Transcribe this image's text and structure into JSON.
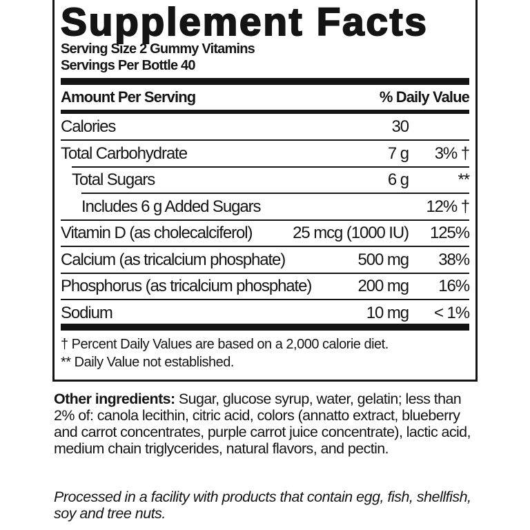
{
  "title": "Supplement Facts",
  "serving_size": "Serving Size 2 Gummy Vitamins",
  "servings_per": "Servings Per Bottle 40",
  "header": {
    "amount": "Amount Per Serving",
    "dv": "% Daily Value"
  },
  "rows": [
    {
      "name": "Calories",
      "amount": "30",
      "dv": ""
    },
    {
      "name": "Total Carbohydrate",
      "amount": "7 g",
      "dv": "3% †"
    },
    {
      "name": "Total Sugars",
      "amount": "6 g",
      "dv": "**"
    },
    {
      "name": "Includes 6 g Added Sugars",
      "amount": "",
      "dv": "12% †"
    },
    {
      "name": "Vitamin D (as cholecalciferol)",
      "amount": "25 mcg (1000 IU)",
      "dv": "125%"
    },
    {
      "name": "Calcium (as tricalcium phosphate)",
      "amount": "500 mg",
      "dv": "38%"
    },
    {
      "name": "Phosphorus (as tricalcium phosphate)",
      "amount": "200 mg",
      "dv": "16%"
    },
    {
      "name": "Sodium",
      "amount": "10 mg",
      "dv": "< 1%"
    }
  ],
  "footnotes": [
    "† Percent Daily Values are based on a 2,000 calorie diet.",
    "** Daily Value not established."
  ],
  "other_ingredients": {
    "label": "Other ingredients:",
    "text": " Sugar, glucose syrup, water, gelatin; less than 2% of: canola lecithin, citric acid, colors (annatto extract, blueberry and carrot concentrates, purple carrot juice concentrate), lactic acid, medium chain triglycerides, natural flavors, and pectin."
  },
  "allergen_statement": "Processed in a facility with products that contain egg, fish, shellfish, soy and tree nuts."
}
